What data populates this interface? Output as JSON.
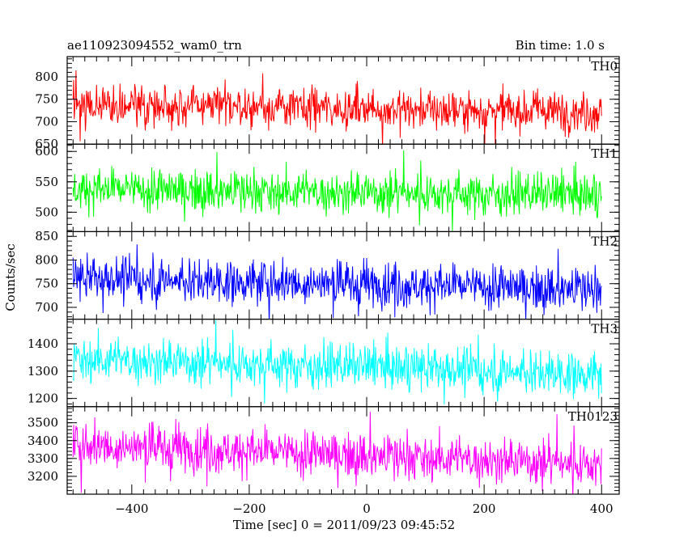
{
  "header": {
    "left_title": "ae110923094552_wam0_trn",
    "right_title": "Bin time: 1.0 s"
  },
  "chart_data": {
    "type": "line",
    "title": "ae110923094552_wam0_trn",
    "subtitle": "Bin time: 1.0 s",
    "xlabel": "Time [sec] 0 = 2011/09/23 09:45:52",
    "ylabel": "Counts/sec",
    "xlim": [
      -510,
      430
    ],
    "xticks": [
      -400,
      -200,
      0,
      200,
      400
    ],
    "xtick_labels": [
      "−400",
      "−200",
      "0",
      "200",
      "400"
    ],
    "x_range": [
      -500,
      400
    ],
    "bin_time": 1.0,
    "grid": false,
    "legend": "none",
    "panels": [
      {
        "name": "TH0",
        "color": "#ff0000",
        "ylim": [
          650,
          845
        ],
        "yticks": [
          650,
          700,
          750,
          800
        ],
        "mean_start": 740,
        "mean_end": 722,
        "noise": 22,
        "spike": 40
      },
      {
        "name": "TH1",
        "color": "#00ff00",
        "ylim": [
          468,
          612
        ],
        "yticks": [
          500,
          550,
          600
        ],
        "mean_start": 538,
        "mean_end": 528,
        "noise": 17,
        "spike": 35
      },
      {
        "name": "TH2",
        "color": "#0000ff",
        "ylim": [
          675,
          860
        ],
        "yticks": [
          700,
          750,
          800,
          850
        ],
        "mean_start": 762,
        "mean_end": 738,
        "noise": 23,
        "spike": 45
      },
      {
        "name": "TH3",
        "color": "#00ffff",
        "ylim": [
          1170,
          1490
        ],
        "yticks": [
          1200,
          1300,
          1400
        ],
        "mean_start": 1345,
        "mean_end": 1290,
        "noise": 40,
        "spike": 80
      },
      {
        "name": "TH0123",
        "color": "#ff00ff",
        "ylim": [
          3100,
          3590
        ],
        "yticks": [
          3200,
          3300,
          3400,
          3500
        ],
        "mean_start": 3375,
        "mean_end": 3270,
        "noise": 62,
        "spike": 140
      }
    ]
  }
}
